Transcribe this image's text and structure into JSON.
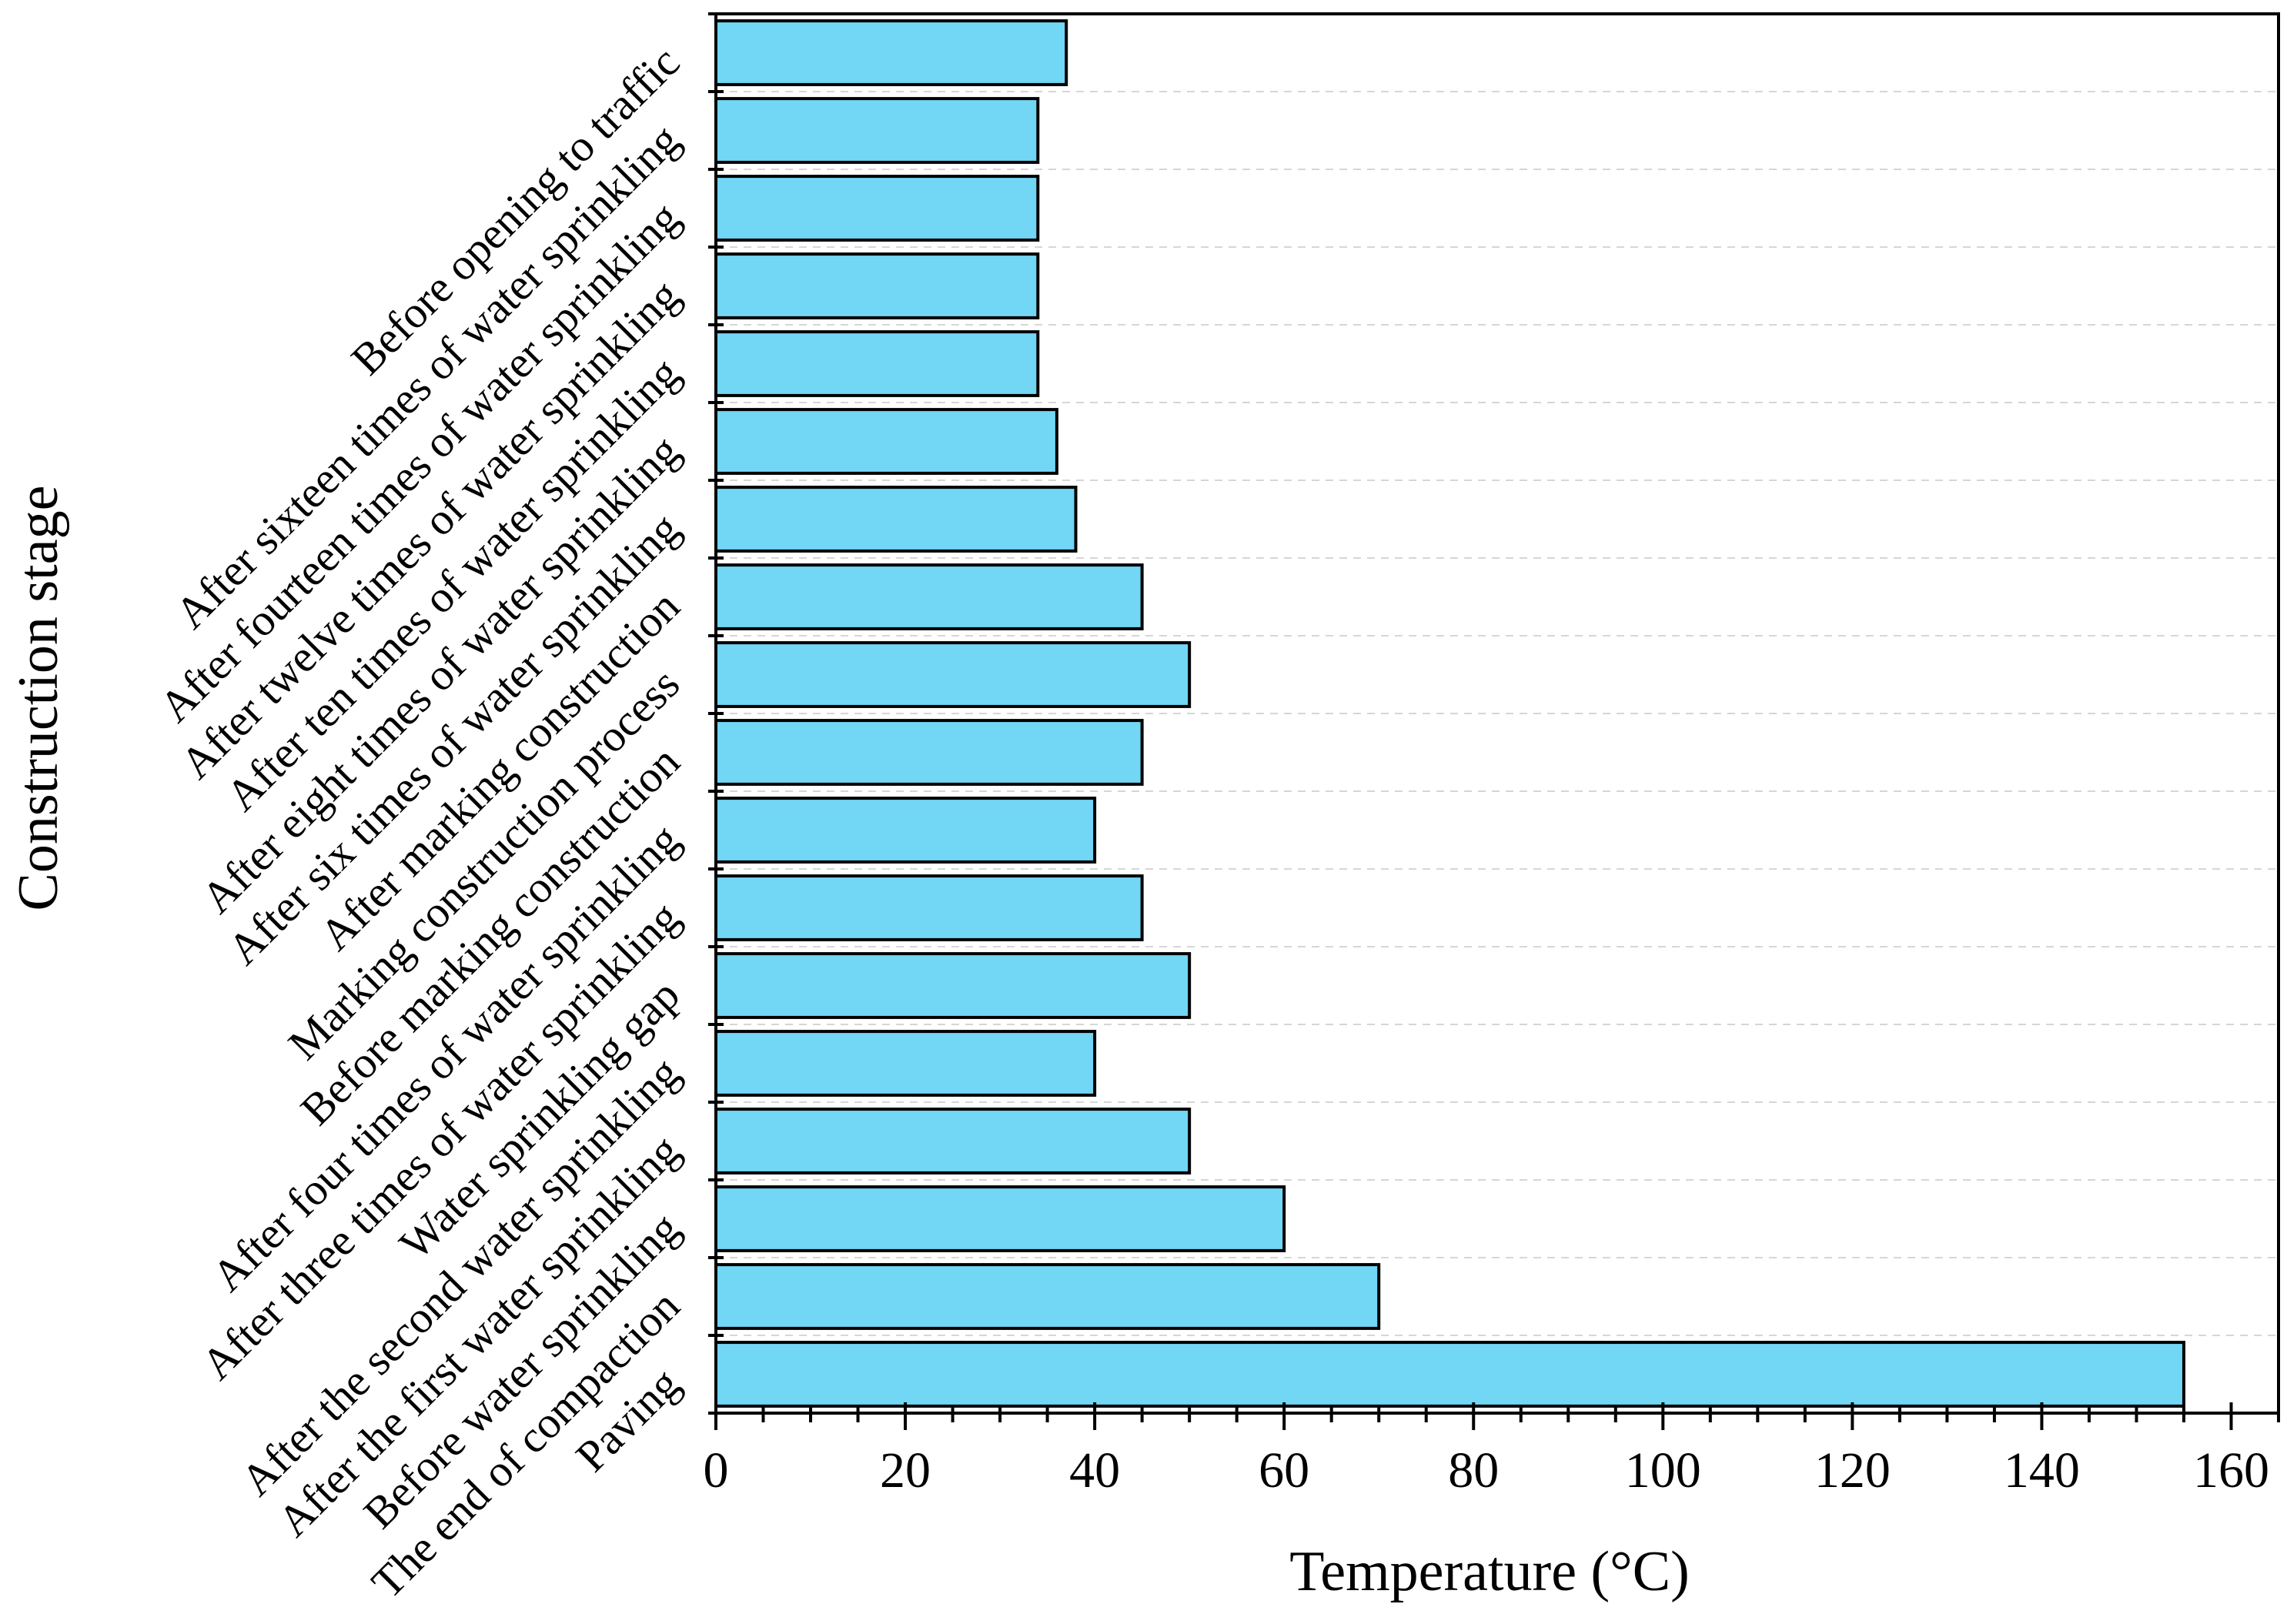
{
  "chart_data": {
    "type": "bar",
    "orientation": "horizontal",
    "xlabel": "Temperature (°C)",
    "ylabel": "Construction stage",
    "xlim": [
      0,
      165
    ],
    "xticks": [
      "0",
      "20",
      "40",
      "60",
      "80",
      "100",
      "120",
      "140",
      "160"
    ],
    "xtick_values": [
      0,
      20,
      40,
      60,
      80,
      100,
      120,
      140,
      160
    ],
    "grid": "horizontal dashed",
    "bar_color": "#72d6f5",
    "categories": [
      "Paving",
      "The end of compaction",
      "Before water sprinkling",
      "After the first water sprinkling",
      "After the second water sprinkling",
      "Water sprinkling gap",
      "After three times of water sprinkling",
      "After four times of water sprinkling",
      "Before marking construction",
      "Marking construction process",
      "After marking construction",
      "After six times of water sprinkling",
      "After eight times of water sprinkling",
      "After ten times of water sprinkling",
      "After twelve times of water sprinkling",
      "After fourteen times of water sprinkling",
      "After sixteen times of water sprinkling",
      "Before opening to traffic"
    ],
    "values": [
      155,
      70,
      60,
      50,
      40,
      50,
      45,
      40,
      45,
      50,
      45,
      38,
      36,
      34,
      34,
      34,
      34,
      37
    ]
  }
}
